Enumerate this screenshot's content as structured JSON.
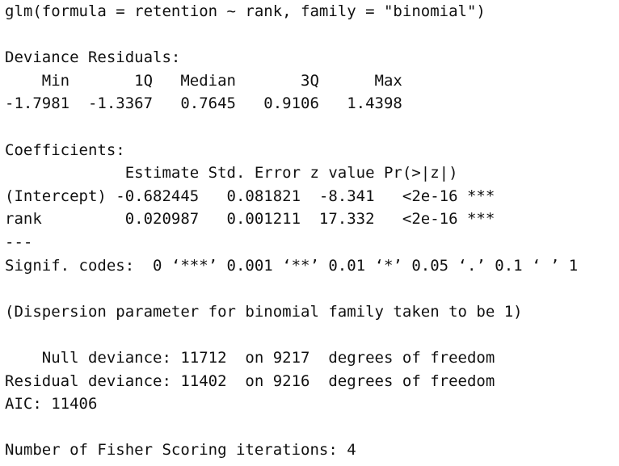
{
  "call": "glm(formula = retention ~ rank, family = \"binomial\")",
  "deviance_residuals": {
    "title": "Deviance Residuals:",
    "header": "    Min       1Q   Median       3Q      Max  ",
    "values": "-1.7981  -1.3367   0.7645   0.9106   1.4398  "
  },
  "coefficients": {
    "title": "Coefficients:",
    "header": "             Estimate Std. Error z value Pr(>|z|)    ",
    "rows": [
      "(Intercept) -0.682445   0.081821  -8.341   <2e-16 ***",
      "rank         0.020987   0.001211  17.332   <2e-16 ***"
    ],
    "separator": "---",
    "signif_codes": "Signif. codes:  0 ‘***’ 0.001 ‘**’ 0.01 ‘*’ 0.05 ‘.’ 0.1 ‘ ’ 1"
  },
  "dispersion": "(Dispersion parameter for binomial family taken to be 1)",
  "deviance": {
    "null": "    Null deviance: 11712  on 9217  degrees of freedom",
    "residual": "Residual deviance: 11402  on 9216  degrees of freedom"
  },
  "aic": "AIC: 11406",
  "fisher": "Number of Fisher Scoring iterations: 4"
}
